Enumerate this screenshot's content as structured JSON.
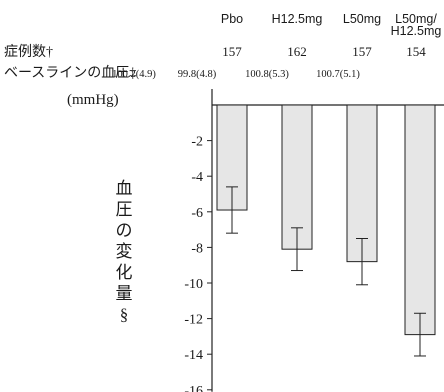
{
  "chart_data": {
    "type": "bar",
    "categories": [
      "Pbo",
      "H12.5mg",
      "L50mg",
      "L50mg/\nH12.5mg"
    ],
    "rows": {
      "count_label": "症例数†",
      "counts": [
        "157",
        "162",
        "157",
        "154"
      ],
      "baseline_label": "ベースラインの血圧‡",
      "baselines": [
        "100.2(4.9)",
        "99.8(4.8)",
        "100.8(5.3)",
        "100.7(5.1)"
      ]
    },
    "unit": "(mmHg)",
    "ylabel": "血圧の変化量§",
    "ylim": [
      -16,
      0
    ],
    "yticks": [
      -2,
      -4,
      -6,
      -8,
      -10,
      -12,
      -14,
      -16
    ],
    "values": [
      -5.9,
      -8.1,
      -8.8,
      -12.9
    ],
    "error": [
      1.3,
      1.2,
      1.3,
      1.2
    ],
    "colors": {
      "bar_fill": "#e6e6e6",
      "bar_stroke": "#222222",
      "axis": "#222222"
    }
  }
}
